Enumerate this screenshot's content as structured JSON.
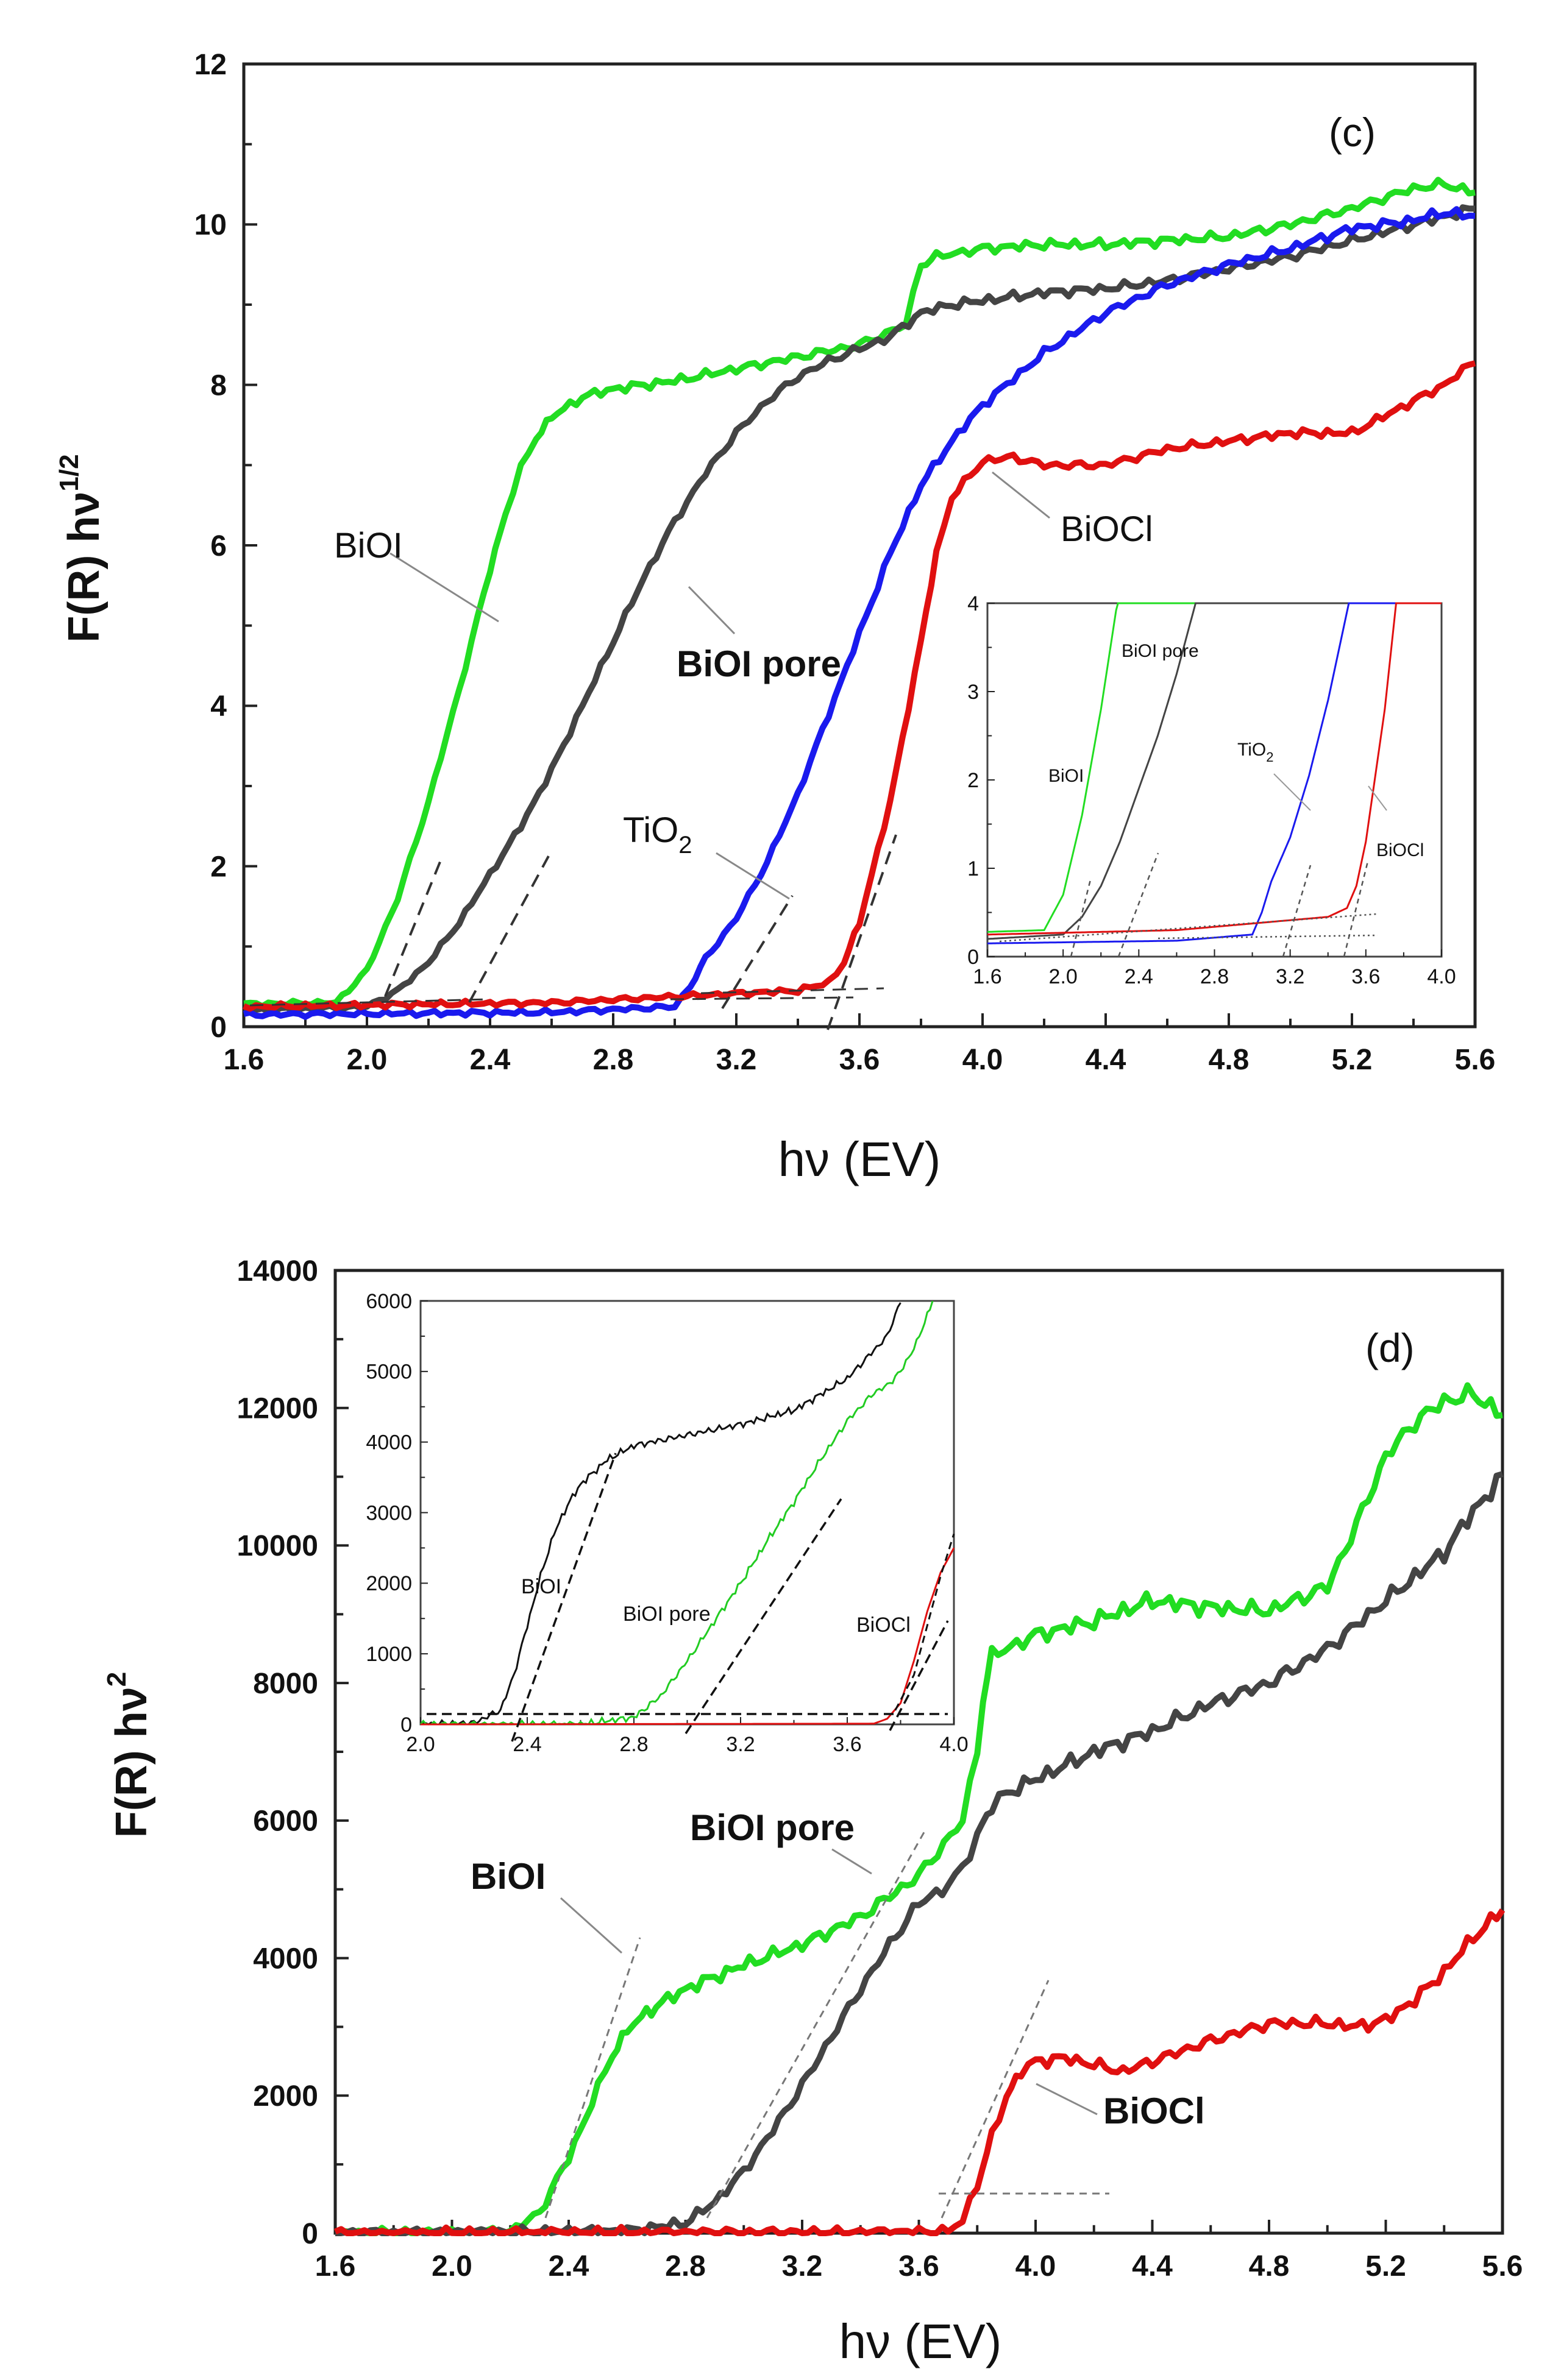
{
  "chart_data": [
    {
      "type": "line",
      "panel_label": "(c)",
      "xlabel": "hν (EV)",
      "ylabel_main": "F(R) hν",
      "ylabel_sup": "1/2",
      "xlim": [
        1.6,
        5.6
      ],
      "ylim": [
        0,
        12
      ],
      "xticks": [
        "1.6",
        "2.0",
        "2.4",
        "2.8",
        "3.2",
        "3.6",
        "4.0",
        "4.4",
        "4.8",
        "5.2",
        "5.6"
      ],
      "yticks": [
        "0",
        "2",
        "4",
        "6",
        "8",
        "10",
        "12"
      ],
      "series": [
        {
          "name": "BiOI",
          "color": "#22dd22",
          "x": [
            1.6,
            1.9,
            2.0,
            2.1,
            2.2,
            2.3,
            2.4,
            2.45,
            2.5,
            2.55,
            2.6,
            2.7,
            2.8,
            3.0,
            3.2,
            3.4,
            3.6,
            3.75,
            3.8,
            3.85,
            4.0,
            4.2,
            4.4,
            4.6,
            4.8,
            5.0,
            5.2,
            5.4,
            5.5,
            5.6
          ],
          "y": [
            0.28,
            0.3,
            0.7,
            1.6,
            2.8,
            4.2,
            5.7,
            6.4,
            6.95,
            7.35,
            7.6,
            7.85,
            7.95,
            8.05,
            8.2,
            8.35,
            8.5,
            8.75,
            9.5,
            9.6,
            9.7,
            9.75,
            9.75,
            9.8,
            9.85,
            10.0,
            10.2,
            10.45,
            10.5,
            10.4
          ]
        },
        {
          "name": "BiOI pore",
          "color": "#444444",
          "x": [
            1.6,
            2.0,
            2.1,
            2.2,
            2.3,
            2.4,
            2.5,
            2.6,
            2.7,
            2.8,
            2.9,
            3.0,
            3.1,
            3.2,
            3.3,
            3.4,
            3.5,
            3.6,
            3.7,
            3.8,
            3.9,
            4.0,
            4.2,
            4.4,
            4.6,
            4.8,
            5.0,
            5.2,
            5.4,
            5.6
          ],
          "y": [
            0.2,
            0.25,
            0.45,
            0.8,
            1.3,
            1.9,
            2.5,
            3.2,
            4.0,
            4.8,
            5.6,
            6.3,
            6.9,
            7.4,
            7.8,
            8.1,
            8.3,
            8.45,
            8.6,
            8.9,
            9.0,
            9.05,
            9.15,
            9.2,
            9.3,
            9.45,
            9.6,
            9.8,
            10.0,
            10.2
          ]
        },
        {
          "name": "TiO2",
          "color": "#1a1aee",
          "x": [
            1.6,
            2.6,
            3.0,
            3.05,
            3.1,
            3.2,
            3.3,
            3.4,
            3.5,
            3.6,
            3.7,
            3.8,
            3.9,
            4.0,
            4.2,
            4.4,
            4.6,
            4.8,
            5.0,
            5.2,
            5.4,
            5.5,
            5.6
          ],
          "y": [
            0.15,
            0.18,
            0.25,
            0.5,
            0.85,
            1.35,
            2.05,
            2.9,
            3.9,
            4.9,
            5.9,
            6.75,
            7.3,
            7.75,
            8.4,
            8.9,
            9.25,
            9.5,
            9.7,
            9.95,
            10.05,
            10.15,
            10.1
          ]
        },
        {
          "name": "BiOCl",
          "color": "#e01010",
          "x": [
            1.6,
            2.6,
            3.4,
            3.5,
            3.55,
            3.6,
            3.7,
            3.8,
            3.85,
            3.9,
            4.0,
            4.1,
            4.2,
            4.4,
            4.6,
            4.8,
            5.0,
            5.2,
            5.3,
            5.4,
            5.5,
            5.6
          ],
          "y": [
            0.25,
            0.3,
            0.45,
            0.55,
            0.8,
            1.3,
            2.8,
            4.8,
            5.9,
            6.6,
            7.05,
            7.1,
            7.0,
            7.0,
            7.2,
            7.3,
            7.4,
            7.4,
            7.6,
            7.8,
            8.0,
            8.3
          ]
        }
      ],
      "annotations": {
        "biol": "BiOI",
        "biol_pore": "BiOI pore",
        "tio2_base": "TiO",
        "tio2_sub": "2",
        "biocl": "BiOCl"
      },
      "inset": {
        "xlim": [
          1.6,
          4.0
        ],
        "ylim": [
          0,
          4
        ],
        "xticks": [
          "1.6",
          "2.0",
          "2.4",
          "2.8",
          "3.2",
          "3.6",
          "4.0"
        ],
        "yticks": [
          "0",
          "1",
          "2",
          "3",
          "4"
        ],
        "labels": {
          "biol": "BiOI",
          "biol_pore": "BiOI pore",
          "tio2_base": "TiO",
          "tio2_sub": "2",
          "biocl": "BiOCl"
        }
      }
    },
    {
      "type": "line",
      "panel_label": "(d)",
      "xlabel": "hν (EV)",
      "ylabel_main": "F(R) hν",
      "ylabel_sup": "2",
      "xlim": [
        1.6,
        5.6
      ],
      "ylim": [
        0,
        14000
      ],
      "xticks": [
        "1.6",
        "2.0",
        "2.4",
        "2.8",
        "3.2",
        "3.6",
        "4.0",
        "4.4",
        "4.8",
        "5.2",
        "5.6"
      ],
      "yticks": [
        "0",
        "2000",
        "4000",
        "6000",
        "8000",
        "10000",
        "12000",
        "14000"
      ],
      "series": [
        {
          "name": "BiOI",
          "color": "#22dd22",
          "x": [
            1.6,
            2.2,
            2.3,
            2.4,
            2.5,
            2.55,
            2.6,
            2.65,
            2.7,
            2.8,
            3.0,
            3.2,
            3.4,
            3.6,
            3.75,
            3.8,
            3.82,
            3.85,
            4.0,
            4.2,
            4.4,
            4.6,
            4.8,
            5.0,
            5.1,
            5.2,
            5.3,
            5.4,
            5.5,
            5.6
          ],
          "y": [
            0,
            20,
            300,
            1100,
            2100,
            2600,
            2950,
            3150,
            3300,
            3550,
            3900,
            4200,
            4600,
            5200,
            6000,
            7000,
            7800,
            8400,
            8700,
            8900,
            9200,
            9100,
            9050,
            9400,
            10300,
            11300,
            11800,
            12100,
            12200,
            11900
          ]
        },
        {
          "name": "BiOI pore",
          "color": "#444444",
          "x": [
            1.6,
            2.6,
            2.8,
            2.9,
            3.0,
            3.1,
            3.2,
            3.3,
            3.4,
            3.5,
            3.6,
            3.7,
            3.75,
            3.8,
            3.85,
            3.9,
            4.0,
            4.2,
            4.4,
            4.6,
            4.8,
            5.0,
            5.2,
            5.4,
            5.5,
            5.6
          ],
          "y": [
            0,
            30,
            150,
            450,
            900,
            1500,
            2150,
            2850,
            3550,
            4200,
            4800,
            5050,
            5300,
            5800,
            6200,
            6400,
            6600,
            7000,
            7300,
            7700,
            8000,
            8500,
            9200,
            9900,
            10500,
            11000
          ]
        },
        {
          "name": "BiOCl",
          "color": "#e01010",
          "x": [
            1.6,
            3.7,
            3.75,
            3.8,
            3.85,
            3.9,
            3.95,
            4.0,
            4.1,
            4.2,
            4.3,
            4.4,
            4.6,
            4.8,
            5.0,
            5.1,
            5.2,
            5.3,
            5.4,
            5.5,
            5.6
          ],
          "y": [
            0,
            20,
            200,
            700,
            1400,
            2000,
            2350,
            2500,
            2550,
            2450,
            2350,
            2500,
            2800,
            3050,
            3050,
            3000,
            3100,
            3400,
            3800,
            4300,
            4700
          ]
        }
      ],
      "annotations": {
        "biol": "BiOI",
        "biol_pore": "BiOI pore",
        "biocl": "BiOCl"
      },
      "inset": {
        "xlim": [
          2.0,
          4.0
        ],
        "ylim": [
          0,
          6000
        ],
        "xticks": [
          "2.0",
          "2.4",
          "2.8",
          "3.2",
          "3.6",
          "4.0"
        ],
        "yticks": [
          "0",
          "1000",
          "2000",
          "3000",
          "4000",
          "5000",
          "6000"
        ],
        "labels": {
          "biol": "BiOI",
          "biol_pore": "BiOI pore",
          "biocl": "BiOCl"
        }
      }
    }
  ]
}
